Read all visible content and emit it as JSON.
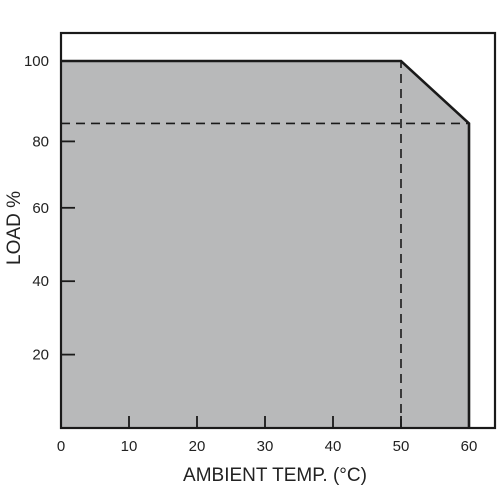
{
  "chart_data": {
    "type": "area",
    "title": "",
    "xlabel": "AMBIENT TEMP. (°C)",
    "ylabel": "LOAD %",
    "xlim": [
      0,
      70
    ],
    "ylim": [
      0,
      110
    ],
    "x_ticks": [
      0,
      10,
      20,
      30,
      40,
      50,
      60
    ],
    "y_ticks": [
      20,
      40,
      60,
      80,
      100
    ],
    "grid": false,
    "legend": "none",
    "series": [
      {
        "x": [
          0,
          50,
          60,
          60,
          0
        ],
        "y": [
          100,
          100,
          83,
          0,
          0
        ]
      }
    ],
    "reference_lines": [
      {
        "orientation": "horizontal",
        "value": 83,
        "from": 0,
        "to": 60,
        "style": "dashed"
      },
      {
        "orientation": "vertical",
        "value": 50,
        "from": 0,
        "to": 100,
        "style": "dashed"
      }
    ],
    "colors": {
      "fill": "#b8b9ba",
      "line": "#1a1a1a",
      "frame": "#1a1a1a",
      "text": "#222222"
    }
  }
}
